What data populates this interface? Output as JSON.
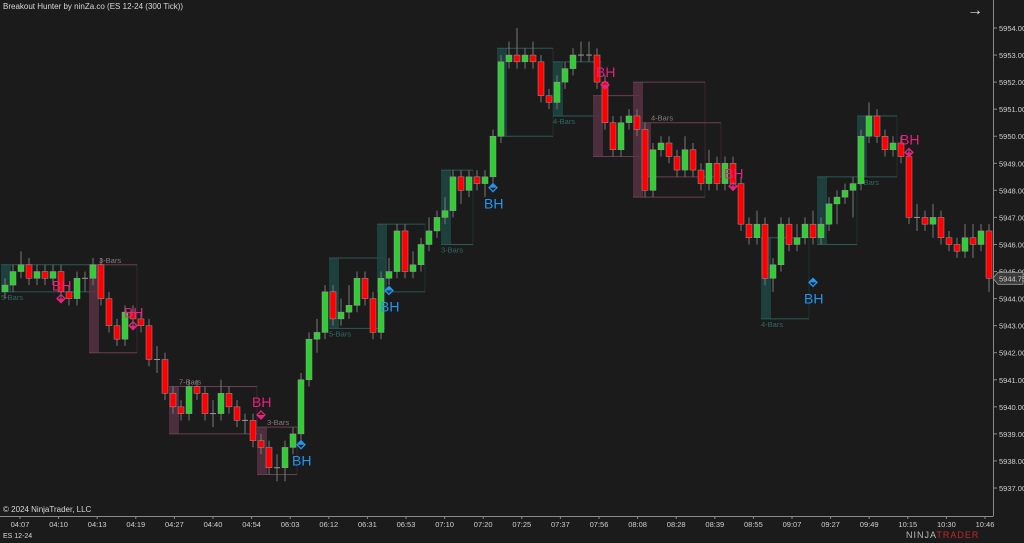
{
  "header": {
    "title": "Breakout Hunter by ninZa.co (ES 12-24 (300 Tick))",
    "nav_arrow_icon": "arrow-right-icon"
  },
  "footer": {
    "copyright": "© 2024 NinjaTrader, LLC",
    "instrument": "ES 12-24",
    "logo_prefix": "NINJA",
    "logo_suffix": "TRADER",
    "logo_mark": "®"
  },
  "colors": {
    "background": "#1b1b1b",
    "up": "#32cd32",
    "down": "#ff0000",
    "bearish_signal": "#e8207f",
    "bullish_signal": "#2196f3",
    "bullish_box": "#1f4a45",
    "bearish_box": "#5a3345"
  },
  "chart_data": {
    "type": "candlestick",
    "title": "Breakout Hunter by ninZa.co (ES 12-24 (300 Tick))",
    "ylim": [
      5937,
      5954
    ],
    "y_ticks": [
      "5954.00",
      "5953.00",
      "5952.00",
      "5951.00",
      "5950.00",
      "5949.00",
      "5948.00",
      "5947.00",
      "5946.00",
      "5945.00",
      "5944.00",
      "5943.00",
      "5942.00",
      "5941.00",
      "5940.00",
      "5939.00",
      "5938.00",
      "5937.00"
    ],
    "x_ticks": [
      "04:07",
      "04:10",
      "04:13",
      "04:19",
      "04:27",
      "04:40",
      "04:54",
      "06:03",
      "06:12",
      "06:31",
      "06:53",
      "07:10",
      "07:20",
      "07:25",
      "07:37",
      "07:56",
      "08:08",
      "08:28",
      "08:39",
      "08:55",
      "09:07",
      "09:27",
      "09:49",
      "10:15",
      "10:30",
      "10:46"
    ],
    "last_price": "5944.75",
    "grid": false,
    "candles_ohlc": [
      [
        5944.25,
        5944.75,
        5944.0,
        5944.5
      ],
      [
        5944.5,
        5945.25,
        5944.25,
        5945.0
      ],
      [
        5945.0,
        5945.75,
        5944.75,
        5945.25
      ],
      [
        5945.25,
        5945.5,
        5944.5,
        5944.75
      ],
      [
        5944.75,
        5945.25,
        5944.5,
        5945.0
      ],
      [
        5945.0,
        5945.25,
        5944.5,
        5944.75
      ],
      [
        5944.75,
        5945.25,
        5944.5,
        5945.0
      ],
      [
        5945.0,
        5945.25,
        5944.0,
        5944.25
      ],
      [
        5944.25,
        5944.5,
        5943.75,
        5944.0
      ],
      [
        5944.0,
        5945.0,
        5943.75,
        5944.75
      ],
      [
        5944.75,
        5945.0,
        5944.25,
        5944.75
      ],
      [
        5944.75,
        5945.5,
        5944.5,
        5945.25
      ],
      [
        5945.25,
        5945.5,
        5943.75,
        5944.0
      ],
      [
        5944.0,
        5944.25,
        5942.75,
        5943.0
      ],
      [
        5943.0,
        5943.25,
        5942.25,
        5942.5
      ],
      [
        5942.5,
        5943.75,
        5942.25,
        5943.5
      ],
      [
        5943.5,
        5943.75,
        5943.0,
        5943.25
      ],
      [
        5943.25,
        5943.5,
        5942.75,
        5943.0
      ],
      [
        5943.0,
        5943.25,
        5941.5,
        5941.75
      ],
      [
        5941.75,
        5942.25,
        5941.25,
        5941.75
      ],
      [
        5941.75,
        5942.0,
        5940.25,
        5940.5
      ],
      [
        5940.5,
        5940.75,
        5939.75,
        5940.0
      ],
      [
        5940.0,
        5940.25,
        5939.5,
        5939.75
      ],
      [
        5939.75,
        5941.0,
        5939.5,
        5940.75
      ],
      [
        5940.75,
        5941.0,
        5940.25,
        5940.5
      ],
      [
        5940.5,
        5940.75,
        5939.5,
        5939.75
      ],
      [
        5939.75,
        5940.25,
        5939.25,
        5939.75
      ],
      [
        5939.75,
        5941.0,
        5939.5,
        5940.5
      ],
      [
        5940.5,
        5940.75,
        5939.75,
        5940.0
      ],
      [
        5940.0,
        5940.25,
        5939.25,
        5939.5
      ],
      [
        5939.5,
        5939.75,
        5939.0,
        5939.5
      ],
      [
        5939.5,
        5939.75,
        5938.5,
        5938.75
      ],
      [
        5938.75,
        5939.0,
        5938.25,
        5938.5
      ],
      [
        5938.5,
        5938.75,
        5937.5,
        5937.75
      ],
      [
        5937.75,
        5938.25,
        5937.25,
        5937.75
      ],
      [
        5937.75,
        5938.75,
        5937.25,
        5938.5
      ],
      [
        5938.5,
        5939.25,
        5938.25,
        5939.0
      ],
      [
        5939.0,
        5941.25,
        5938.75,
        5941.0
      ],
      [
        5941.0,
        5942.75,
        5940.75,
        5942.5
      ],
      [
        5942.5,
        5943.25,
        5942.0,
        5942.75
      ],
      [
        5942.75,
        5944.5,
        5942.5,
        5944.25
      ],
      [
        5944.25,
        5944.5,
        5943.0,
        5943.25
      ],
      [
        5943.25,
        5944.0,
        5943.0,
        5943.5
      ],
      [
        5943.5,
        5944.5,
        5943.25,
        5943.75
      ],
      [
        5943.75,
        5945.0,
        5943.5,
        5944.75
      ],
      [
        5944.75,
        5945.0,
        5943.75,
        5944.0
      ],
      [
        5944.0,
        5944.25,
        5942.5,
        5942.75
      ],
      [
        5942.75,
        5945.0,
        5942.5,
        5944.75
      ],
      [
        5944.75,
        5945.5,
        5944.5,
        5945.0
      ],
      [
        5945.0,
        5946.75,
        5944.75,
        5946.5
      ],
      [
        5946.5,
        5946.75,
        5944.75,
        5945.0
      ],
      [
        5945.0,
        5945.75,
        5944.75,
        5945.25
      ],
      [
        5945.25,
        5946.25,
        5945.0,
        5946.0
      ],
      [
        5946.0,
        5947.0,
        5945.75,
        5946.5
      ],
      [
        5946.5,
        5947.25,
        5946.25,
        5947.0
      ],
      [
        5947.0,
        5947.75,
        5946.75,
        5947.25
      ],
      [
        5947.25,
        5948.75,
        5947.0,
        5948.5
      ],
      [
        5948.5,
        5948.75,
        5947.5,
        5948.0
      ],
      [
        5948.0,
        5948.75,
        5947.75,
        5948.5
      ],
      [
        5948.5,
        5948.75,
        5948.0,
        5948.25
      ],
      [
        5948.25,
        5948.75,
        5947.75,
        5948.5
      ],
      [
        5948.5,
        5950.25,
        5948.25,
        5950.0
      ],
      [
        5950.0,
        5953.0,
        5949.75,
        5952.75
      ],
      [
        5952.75,
        5953.5,
        5952.5,
        5953.0
      ],
      [
        5953.0,
        5954.0,
        5952.5,
        5952.75
      ],
      [
        5952.75,
        5953.25,
        5952.5,
        5953.0
      ],
      [
        5953.0,
        5953.5,
        5952.5,
        5952.75
      ],
      [
        5952.75,
        5953.0,
        5951.25,
        5951.5
      ],
      [
        5951.5,
        5951.75,
        5951.0,
        5951.25
      ],
      [
        5951.25,
        5952.25,
        5951.0,
        5952.0
      ],
      [
        5952.0,
        5952.75,
        5951.75,
        5952.5
      ],
      [
        5952.5,
        5953.25,
        5952.25,
        5953.0
      ],
      [
        5953.0,
        5953.5,
        5952.75,
        5953.0
      ],
      [
        5953.0,
        5953.5,
        5952.75,
        5953.0
      ],
      [
        5953.0,
        5953.25,
        5951.75,
        5952.0
      ],
      [
        5952.0,
        5952.25,
        5950.25,
        5950.5
      ],
      [
        5950.5,
        5950.75,
        5949.25,
        5949.5
      ],
      [
        5949.5,
        5950.75,
        5949.25,
        5950.5
      ],
      [
        5950.5,
        5951.0,
        5950.25,
        5950.75
      ],
      [
        5950.75,
        5951.0,
        5950.0,
        5950.25
      ],
      [
        5950.25,
        5950.5,
        5947.75,
        5948.0
      ],
      [
        5948.0,
        5949.75,
        5947.75,
        5949.5
      ],
      [
        5949.5,
        5950.0,
        5949.25,
        5949.75
      ],
      [
        5949.75,
        5950.0,
        5949.0,
        5949.25
      ],
      [
        5949.25,
        5949.5,
        5948.5,
        5948.75
      ],
      [
        5948.75,
        5950.0,
        5948.5,
        5949.5
      ],
      [
        5949.5,
        5949.75,
        5948.5,
        5948.75
      ],
      [
        5948.75,
        5949.0,
        5948.0,
        5948.25
      ],
      [
        5948.25,
        5949.5,
        5948.0,
        5949.0
      ],
      [
        5949.0,
        5949.25,
        5948.0,
        5948.25
      ],
      [
        5948.25,
        5949.25,
        5948.0,
        5949.0
      ],
      [
        5949.0,
        5949.25,
        5948.0,
        5948.25
      ],
      [
        5948.25,
        5948.5,
        5946.5,
        5946.75
      ],
      [
        5946.75,
        5947.0,
        5946.0,
        5946.25
      ],
      [
        5946.25,
        5947.25,
        5946.0,
        5946.75
      ],
      [
        5946.75,
        5947.0,
        5944.5,
        5944.75
      ],
      [
        5944.75,
        5945.5,
        5944.25,
        5945.25
      ],
      [
        5945.25,
        5947.0,
        5945.0,
        5946.75
      ],
      [
        5946.75,
        5947.0,
        5945.75,
        5946.0
      ],
      [
        5946.0,
        5946.75,
        5945.75,
        5946.25
      ],
      [
        5946.25,
        5947.0,
        5946.0,
        5946.75
      ],
      [
        5946.75,
        5947.25,
        5946.0,
        5946.25
      ],
      [
        5946.25,
        5947.0,
        5946.0,
        5946.75
      ],
      [
        5946.75,
        5947.75,
        5946.5,
        5947.5
      ],
      [
        5947.5,
        5948.0,
        5946.75,
        5947.75
      ],
      [
        5947.75,
        5948.25,
        5947.5,
        5948.0
      ],
      [
        5948.0,
        5948.5,
        5947.0,
        5948.25
      ],
      [
        5948.25,
        5950.25,
        5948.0,
        5950.0
      ],
      [
        5950.0,
        5951.25,
        5949.75,
        5950.75
      ],
      [
        5950.75,
        5951.0,
        5949.75,
        5950.0
      ],
      [
        5950.0,
        5950.25,
        5949.25,
        5949.5
      ],
      [
        5949.5,
        5950.0,
        5949.25,
        5949.75
      ],
      [
        5949.75,
        5950.0,
        5949.0,
        5949.25
      ],
      [
        5949.25,
        5949.5,
        5946.75,
        5947.0
      ],
      [
        5947.0,
        5947.5,
        5946.5,
        5947.0
      ],
      [
        5947.0,
        5947.25,
        5946.5,
        5946.75
      ],
      [
        5946.75,
        5947.5,
        5946.25,
        5947.0
      ],
      [
        5947.0,
        5947.25,
        5946.0,
        5946.25
      ],
      [
        5946.25,
        5946.5,
        5945.75,
        5946.0
      ],
      [
        5946.0,
        5946.25,
        5945.5,
        5945.75
      ],
      [
        5945.75,
        5946.75,
        5945.5,
        5946.25
      ],
      [
        5946.25,
        5946.75,
        5945.5,
        5946.0
      ],
      [
        5946.0,
        5946.75,
        5945.75,
        5946.5
      ],
      [
        5946.5,
        5946.75,
        5944.25,
        5944.75
      ]
    ],
    "boxes": [
      {
        "start": 0,
        "end": 11,
        "top": 5945.25,
        "bottom": 5944.25,
        "direction": "bullish",
        "label": "5-Bars"
      },
      {
        "start": 11,
        "end": 16,
        "top": 5945.25,
        "bottom": 5942.0,
        "direction": "bearish",
        "label": "3-Bars"
      },
      {
        "start": 21,
        "end": 31,
        "top": 5940.75,
        "bottom": 5939.0,
        "direction": "bearish",
        "label": "7-Bars"
      },
      {
        "start": 32,
        "end": 36,
        "top": 5939.25,
        "bottom": 5937.5,
        "direction": "bearish",
        "label": "3-Bars"
      },
      {
        "start": 41,
        "end": 47,
        "top": 5945.5,
        "bottom": 5942.9,
        "direction": "bullish",
        "label": "5-Bars"
      },
      {
        "start": 47,
        "end": 52,
        "top": 5946.75,
        "bottom": 5944.25,
        "direction": "bullish",
        "label": ""
      },
      {
        "start": 55,
        "end": 58,
        "top": 5948.75,
        "bottom": 5946.0,
        "direction": "bullish",
        "label": "3-Bars"
      },
      {
        "start": 62,
        "end": 68,
        "top": 5953.25,
        "bottom": 5950.0,
        "direction": "bullish",
        "label": ""
      },
      {
        "start": 69,
        "end": 74,
        "top": 5952.75,
        "bottom": 5950.75,
        "direction": "bullish",
        "label": "4-Bars"
      },
      {
        "start": 74,
        "end": 79,
        "top": 5951.5,
        "bottom": 5949.25,
        "direction": "bearish",
        "label": ""
      },
      {
        "start": 79,
        "end": 87,
        "top": 5952.0,
        "bottom": 5947.75,
        "direction": "bearish",
        "label": ""
      },
      {
        "start": 80,
        "end": 89,
        "top": 5950.5,
        "bottom": 5948.5,
        "direction": "bearish",
        "label": "4-Bars"
      },
      {
        "start": 95,
        "end": 100,
        "top": 5946.25,
        "bottom": 5943.25,
        "direction": "bullish",
        "label": "4-Bars"
      },
      {
        "start": 102,
        "end": 106,
        "top": 5948.5,
        "bottom": 5946.0,
        "direction": "bullish",
        "label": ""
      },
      {
        "start": 107,
        "end": 111,
        "top": 5950.75,
        "bottom": 5948.5,
        "direction": "bullish",
        "label": "4-Bars"
      }
    ],
    "signals": [
      {
        "bar": 7,
        "price": 5944.0,
        "direction": "bearish",
        "label": "BH"
      },
      {
        "bar": 16,
        "price": 5943.0,
        "direction": "bearish",
        "label": "BH"
      },
      {
        "bar": 32,
        "price": 5939.7,
        "direction": "bearish",
        "label": "BH"
      },
      {
        "bar": 75,
        "price": 5951.9,
        "direction": "bearish",
        "label": "BH"
      },
      {
        "bar": 91,
        "price": 5948.15,
        "direction": "bearish",
        "label": "BH"
      },
      {
        "bar": 113,
        "price": 5949.4,
        "direction": "bearish",
        "label": "BH"
      },
      {
        "bar": 37,
        "price": 5938.6,
        "direction": "bullish",
        "label": "BH"
      },
      {
        "bar": 48,
        "price": 5944.3,
        "direction": "bullish",
        "label": "BH"
      },
      {
        "bar": 61,
        "price": 5948.1,
        "direction": "bullish",
        "label": "BH"
      },
      {
        "bar": 101,
        "price": 5944.6,
        "direction": "bullish",
        "label": "BH"
      }
    ]
  }
}
